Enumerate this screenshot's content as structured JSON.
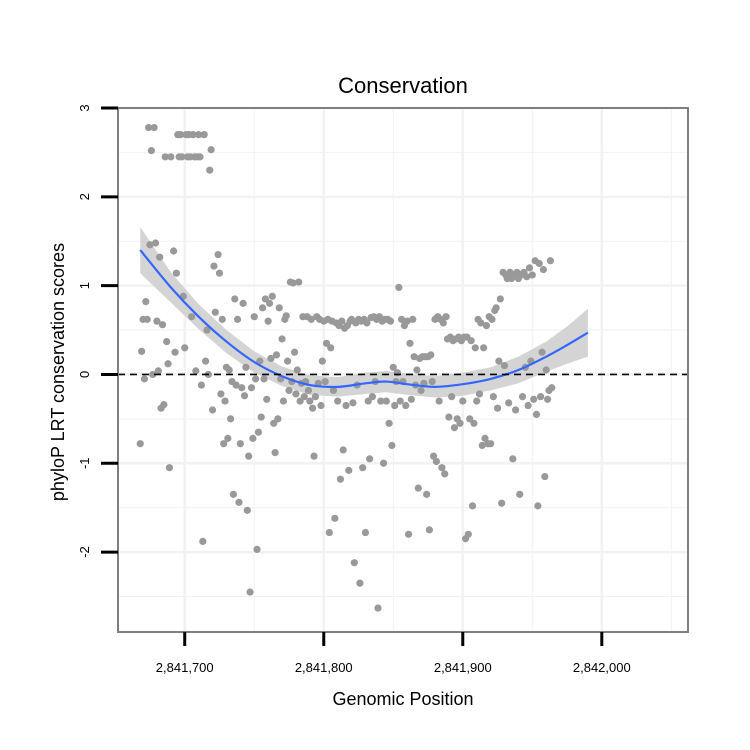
{
  "chart_data": {
    "type": "scatter",
    "title": "Conservation",
    "xlabel": "Genomic Position",
    "ylabel": "phyloP LRT conservation scores",
    "xlim": [
      2841652,
      2842062
    ],
    "ylim": [
      -2.9,
      3.0
    ],
    "x_ticks": [
      {
        "value": 2841700,
        "label": "2,841,700"
      },
      {
        "value": 2841800,
        "label": "2,841,800"
      },
      {
        "value": 2841900,
        "label": "2,841,900"
      },
      {
        "value": 2842000,
        "label": "2,842,000"
      }
    ],
    "y_ticks": [
      {
        "value": -2,
        "label": "-2"
      },
      {
        "value": -1,
        "label": "-1"
      },
      {
        "value": 0,
        "label": "0"
      },
      {
        "value": 1,
        "label": "1"
      },
      {
        "value": 2,
        "label": "2"
      },
      {
        "value": 3,
        "label": "3"
      }
    ],
    "grid": true,
    "reference_line": {
      "y": 0,
      "style": "dashed"
    },
    "colors": {
      "points": "#999999",
      "smooth": "#3366ff",
      "ribbon": "#cccccc",
      "frame": "#7f7f7f",
      "grid": "#f2f2f2"
    },
    "points": [
      [
        2841668,
        -0.78
      ],
      [
        2841669,
        0.26
      ],
      [
        2841670,
        0.62
      ],
      [
        2841671,
        -0.05
      ],
      [
        2841672,
        0.82
      ],
      [
        2841673,
        0.62
      ],
      [
        2841674,
        2.78
      ],
      [
        2841675,
        1.46
      ],
      [
        2841676,
        2.52
      ],
      [
        2841677,
        0.0
      ],
      [
        2841678,
        2.78
      ],
      [
        2841679,
        1.48
      ],
      [
        2841680,
        0.6
      ],
      [
        2841681,
        0.04
      ],
      [
        2841682,
        1.32
      ],
      [
        2841683,
        -0.38
      ],
      [
        2841684,
        0.56
      ],
      [
        2841685,
        -0.34
      ],
      [
        2841686,
        2.45
      ],
      [
        2841687,
        0.37
      ],
      [
        2841688,
        0.12
      ],
      [
        2841689,
        -1.05
      ],
      [
        2841690,
        2.45
      ],
      [
        2841692,
        1.39
      ],
      [
        2841693,
        0.25
      ],
      [
        2841694,
        1.14
      ],
      [
        2841695,
        2.7
      ],
      [
        2841696,
        2.45
      ],
      [
        2841697,
        2.7
      ],
      [
        2841698,
        2.45
      ],
      [
        2841699,
        0.88
      ],
      [
        2841700,
        0.3
      ],
      [
        2841701,
        2.7
      ],
      [
        2841702,
        2.45
      ],
      [
        2841703,
        2.7
      ],
      [
        2841704,
        2.45
      ],
      [
        2841705,
        0.65
      ],
      [
        2841706,
        2.7
      ],
      [
        2841707,
        2.45
      ],
      [
        2841708,
        0.04
      ],
      [
        2841709,
        2.45
      ],
      [
        2841710,
        2.7
      ],
      [
        2841711,
        2.45
      ],
      [
        2841712,
        -0.12
      ],
      [
        2841713,
        -1.88
      ],
      [
        2841714,
        2.7
      ],
      [
        2841715,
        0.15
      ],
      [
        2841716,
        0.5
      ],
      [
        2841717,
        0.0
      ],
      [
        2841718,
        2.3
      ],
      [
        2841719,
        2.53
      ],
      [
        2841720,
        -0.4
      ],
      [
        2841721,
        1.22
      ],
      [
        2841722,
        0.7
      ],
      [
        2841724,
        1.35
      ],
      [
        2841725,
        1.14
      ],
      [
        2841726,
        -0.22
      ],
      [
        2841727,
        0.62
      ],
      [
        2841728,
        -0.78
      ],
      [
        2841729,
        -0.3
      ],
      [
        2841730,
        0.08
      ],
      [
        2841731,
        -0.72
      ],
      [
        2841732,
        0.05
      ],
      [
        2841733,
        -0.5
      ],
      [
        2841734,
        -0.08
      ],
      [
        2841735,
        -1.35
      ],
      [
        2841736,
        0.85
      ],
      [
        2841737,
        -0.12
      ],
      [
        2841738,
        0.62
      ],
      [
        2841739,
        -1.44
      ],
      [
        2841740,
        -0.78
      ],
      [
        2841741,
        -0.15
      ],
      [
        2841742,
        0.8
      ],
      [
        2841743,
        -0.24
      ],
      [
        2841744,
        0.08
      ],
      [
        2841745,
        -1.53
      ],
      [
        2841746,
        -0.92
      ],
      [
        2841747,
        -2.45
      ],
      [
        2841748,
        -0.15
      ],
      [
        2841749,
        -0.72
      ],
      [
        2841750,
        0.65
      ],
      [
        2841751,
        -0.05
      ],
      [
        2841752,
        -1.97
      ],
      [
        2841753,
        -0.65
      ],
      [
        2841754,
        0.15
      ],
      [
        2841755,
        -0.48
      ],
      [
        2841756,
        0.75
      ],
      [
        2841757,
        -0.05
      ],
      [
        2841758,
        0.85
      ],
      [
        2841759,
        -0.28
      ],
      [
        2841760,
        0.6
      ],
      [
        2841761,
        0.8
      ],
      [
        2841762,
        0.18
      ],
      [
        2841763,
        0.88
      ],
      [
        2841764,
        -0.55
      ],
      [
        2841765,
        -0.88
      ],
      [
        2841766,
        0.22
      ],
      [
        2841767,
        -0.5
      ],
      [
        2841768,
        0.75
      ],
      [
        2841769,
        -0.05
      ],
      [
        2841770,
        0.4
      ],
      [
        2841771,
        -0.3
      ],
      [
        2841772,
        0.62
      ],
      [
        2841773,
        0.66
      ],
      [
        2841774,
        0.15
      ],
      [
        2841775,
        -0.18
      ],
      [
        2841776,
        1.04
      ],
      [
        2841777,
        -0.08
      ],
      [
        2841778,
        1.03
      ],
      [
        2841779,
        0.25
      ],
      [
        2841780,
        -0.22
      ],
      [
        2841781,
        0.05
      ],
      [
        2841782,
        1.04
      ],
      [
        2841783,
        -0.3
      ],
      [
        2841784,
        -0.1
      ],
      [
        2841785,
        0.65
      ],
      [
        2841786,
        -0.25
      ],
      [
        2841787,
        -0.08
      ],
      [
        2841788,
        0.65
      ],
      [
        2841789,
        -0.18
      ],
      [
        2841790,
        -0.3
      ],
      [
        2841791,
        0.62
      ],
      [
        2841792,
        -0.38
      ],
      [
        2841793,
        -0.92
      ],
      [
        2841794,
        -0.25
      ],
      [
        2841795,
        0.65
      ],
      [
        2841796,
        -0.1
      ],
      [
        2841797,
        0.62
      ],
      [
        2841798,
        -0.35
      ],
      [
        2841799,
        0.15
      ],
      [
        2841800,
        0.6
      ],
      [
        2841801,
        -0.08
      ],
      [
        2841802,
        0.35
      ],
      [
        2841803,
        0.62
      ],
      [
        2841804,
        -1.78
      ],
      [
        2841805,
        0.3
      ],
      [
        2841806,
        0.6
      ],
      [
        2841807,
        -0.18
      ],
      [
        2841808,
        -1.62
      ],
      [
        2841809,
        0.58
      ],
      [
        2841810,
        -0.3
      ],
      [
        2841811,
        0.55
      ],
      [
        2841812,
        -1.18
      ],
      [
        2841813,
        0.6
      ],
      [
        2841814,
        -0.85
      ],
      [
        2841815,
        0.52
      ],
      [
        2841816,
        -0.35
      ],
      [
        2841817,
        0.55
      ],
      [
        2841818,
        -1.08
      ],
      [
        2841819,
        0.6
      ],
      [
        2841820,
        0.62
      ],
      [
        2841821,
        -0.32
      ],
      [
        2841822,
        -2.12
      ],
      [
        2841823,
        0.58
      ],
      [
        2841824,
        -0.12
      ],
      [
        2841825,
        0.62
      ],
      [
        2841826,
        -2.35
      ],
      [
        2841827,
        0.6
      ],
      [
        2841828,
        -1.05
      ],
      [
        2841829,
        0.62
      ],
      [
        2841830,
        -1.78
      ],
      [
        2841831,
        0.58
      ],
      [
        2841832,
        -0.3
      ],
      [
        2841833,
        -0.95
      ],
      [
        2841834,
        0.64
      ],
      [
        2841835,
        -0.25
      ],
      [
        2841836,
        0.65
      ],
      [
        2841837,
        -0.08
      ],
      [
        2841838,
        0.62
      ],
      [
        2841839,
        -2.63
      ],
      [
        2841840,
        0.65
      ],
      [
        2841841,
        -0.3
      ],
      [
        2841842,
        0.6
      ],
      [
        2841843,
        -1.0
      ],
      [
        2841844,
        0.62
      ],
      [
        2841845,
        -0.3
      ],
      [
        2841846,
        0.62
      ],
      [
        2841847,
        -0.55
      ],
      [
        2841848,
        0.6
      ],
      [
        2841849,
        -0.8
      ],
      [
        2841850,
        0.08
      ],
      [
        2841851,
        -0.35
      ],
      [
        2841852,
        -0.08
      ],
      [
        2841853,
        0.02
      ],
      [
        2841854,
        0.98
      ],
      [
        2841855,
        -0.3
      ],
      [
        2841856,
        0.62
      ],
      [
        2841857,
        -0.08
      ],
      [
        2841858,
        0.55
      ],
      [
        2841859,
        -0.35
      ],
      [
        2841860,
        0.6
      ],
      [
        2841861,
        -1.8
      ],
      [
        2841862,
        0.35
      ],
      [
        2841863,
        -0.28
      ],
      [
        2841864,
        0.62
      ],
      [
        2841865,
        0.2
      ],
      [
        2841866,
        -0.12
      ],
      [
        2841867,
        0.05
      ],
      [
        2841868,
        -1.28
      ],
      [
        2841869,
        0.18
      ],
      [
        2841870,
        -0.18
      ],
      [
        2841871,
        0.2
      ],
      [
        2841872,
        -0.1
      ],
      [
        2841873,
        0.2
      ],
      [
        2841874,
        -1.35
      ],
      [
        2841875,
        0.2
      ],
      [
        2841876,
        -1.75
      ],
      [
        2841877,
        0.22
      ],
      [
        2841878,
        -0.08
      ],
      [
        2841879,
        -0.92
      ],
      [
        2841880,
        0.62
      ],
      [
        2841881,
        -0.98
      ],
      [
        2841882,
        0.65
      ],
      [
        2841883,
        -0.3
      ],
      [
        2841884,
        0.62
      ],
      [
        2841885,
        -1.05
      ],
      [
        2841886,
        0.58
      ],
      [
        2841887,
        -1.12
      ],
      [
        2841888,
        0.65
      ],
      [
        2841889,
        0.4
      ],
      [
        2841890,
        -0.48
      ],
      [
        2841891,
        0.42
      ],
      [
        2841892,
        -0.25
      ],
      [
        2841893,
        0.38
      ],
      [
        2841894,
        -0.6
      ],
      [
        2841895,
        0.4
      ],
      [
        2841896,
        -0.5
      ],
      [
        2841897,
        0.42
      ],
      [
        2841898,
        -0.55
      ],
      [
        2841899,
        0.38
      ],
      [
        2841900,
        -0.3
      ],
      [
        2841901,
        0.42
      ],
      [
        2841902,
        -1.85
      ],
      [
        2841903,
        0.42
      ],
      [
        2841904,
        -1.8
      ],
      [
        2841905,
        -0.5
      ],
      [
        2841906,
        0.38
      ],
      [
        2841907,
        -1.48
      ],
      [
        2841908,
        -0.55
      ],
      [
        2841909,
        0.3
      ],
      [
        2841910,
        -0.3
      ],
      [
        2841911,
        0.62
      ],
      [
        2841912,
        -0.22
      ],
      [
        2841913,
        0.58
      ],
      [
        2841914,
        -0.8
      ],
      [
        2841915,
        0.3
      ],
      [
        2841916,
        -0.72
      ],
      [
        2841917,
        0.55
      ],
      [
        2841918,
        -0.78
      ],
      [
        2841919,
        0.65
      ],
      [
        2841920,
        -0.78
      ],
      [
        2841921,
        0.62
      ],
      [
        2841922,
        -0.25
      ],
      [
        2841923,
        0.72
      ],
      [
        2841924,
        0.75
      ],
      [
        2841925,
        -0.38
      ],
      [
        2841926,
        0.15
      ],
      [
        2841927,
        0.85
      ],
      [
        2841928,
        -1.45
      ],
      [
        2841929,
        1.15
      ],
      [
        2841930,
        0.1
      ],
      [
        2841931,
        1.12
      ],
      [
        2841932,
        1.08
      ],
      [
        2841933,
        -0.32
      ],
      [
        2841934,
        1.15
      ],
      [
        2841935,
        1.08
      ],
      [
        2841936,
        -0.95
      ],
      [
        2841937,
        1.12
      ],
      [
        2841938,
        -0.4
      ],
      [
        2841939,
        1.15
      ],
      [
        2841940,
        1.08
      ],
      [
        2841941,
        -1.35
      ],
      [
        2841942,
        1.12
      ],
      [
        2841943,
        -0.25
      ],
      [
        2841944,
        1.15
      ],
      [
        2841945,
        0.08
      ],
      [
        2841946,
        1.1
      ],
      [
        2841947,
        -0.35
      ],
      [
        2841948,
        1.2
      ],
      [
        2841949,
        0.15
      ],
      [
        2841950,
        1.12
      ],
      [
        2841951,
        -0.28
      ],
      [
        2841952,
        1.28
      ],
      [
        2841953,
        -0.45
      ],
      [
        2841954,
        -1.48
      ],
      [
        2841955,
        1.25
      ],
      [
        2841956,
        -0.25
      ],
      [
        2841957,
        0.25
      ],
      [
        2841958,
        1.18
      ],
      [
        2841959,
        -1.15
      ],
      [
        2841960,
        0.05
      ],
      [
        2841961,
        -0.28
      ],
      [
        2841962,
        -0.18
      ],
      [
        2841963,
        1.28
      ],
      [
        2841964,
        -0.15
      ]
    ],
    "smooth": [
      [
        2841668,
        1.4,
        1.14,
        1.66
      ],
      [
        2841690,
        0.98,
        0.81,
        1.15
      ],
      [
        2841710,
        0.65,
        0.51,
        0.79
      ],
      [
        2841730,
        0.37,
        0.24,
        0.5
      ],
      [
        2841750,
        0.14,
        0.02,
        0.26
      ],
      [
        2841770,
        -0.02,
        -0.13,
        0.09
      ],
      [
        2841790,
        -0.12,
        -0.23,
        -0.01
      ],
      [
        2841810,
        -0.14,
        -0.25,
        -0.03
      ],
      [
        2841830,
        -0.1,
        -0.22,
        0.02
      ],
      [
        2841845,
        -0.08,
        -0.2,
        0.04
      ],
      [
        2841860,
        -0.11,
        -0.23,
        0.01
      ],
      [
        2841880,
        -0.14,
        -0.26,
        -0.02
      ],
      [
        2841900,
        -0.11,
        -0.24,
        0.02
      ],
      [
        2841920,
        -0.05,
        -0.18,
        0.08
      ],
      [
        2841940,
        0.05,
        -0.1,
        0.2
      ],
      [
        2841960,
        0.2,
        0.03,
        0.37
      ],
      [
        2841975,
        0.33,
        0.12,
        0.54
      ],
      [
        2841990,
        0.47,
        0.2,
        0.74
      ]
    ]
  }
}
